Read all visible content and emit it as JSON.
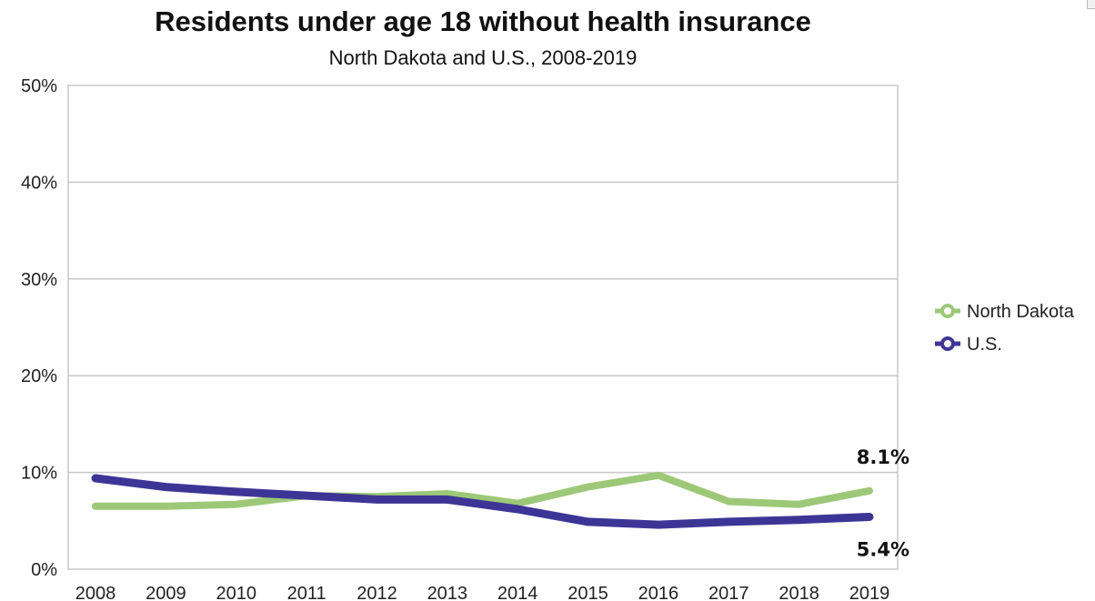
{
  "chart_data": {
    "type": "line",
    "title": "Residents under age 18 without health insurance",
    "subtitle": "North Dakota and U.S., 2008-2019",
    "xlabel": "",
    "ylabel": "",
    "categories": [
      "2008",
      "2009",
      "2010",
      "2011",
      "2012",
      "2013",
      "2014",
      "2015",
      "2016",
      "2017",
      "2018",
      "2019"
    ],
    "ylim": [
      0,
      50
    ],
    "y_ticks": [
      0,
      10,
      20,
      30,
      40,
      50
    ],
    "y_tick_labels": [
      "0%",
      "10%",
      "20%",
      "30%",
      "40%",
      "50%"
    ],
    "grid": true,
    "legend_position": "right",
    "series": [
      {
        "name": "North Dakota",
        "color": "#9dc878",
        "values": [
          6.5,
          6.5,
          6.7,
          7.6,
          7.5,
          7.8,
          6.8,
          8.5,
          9.7,
          7.0,
          6.7,
          8.1
        ]
      },
      {
        "name": "U.S.",
        "color": "#3d3596",
        "values": [
          9.4,
          8.5,
          8.0,
          7.6,
          7.2,
          7.2,
          6.2,
          4.9,
          4.6,
          4.9,
          5.1,
          5.4
        ]
      }
    ],
    "annotations": [
      {
        "text": "8.1%",
        "series": "North Dakota",
        "category": "2019"
      },
      {
        "text": "5.4%",
        "series": "U.S.",
        "category": "2019"
      }
    ]
  },
  "icons": {
    "corner": "resize-corner-icon"
  }
}
